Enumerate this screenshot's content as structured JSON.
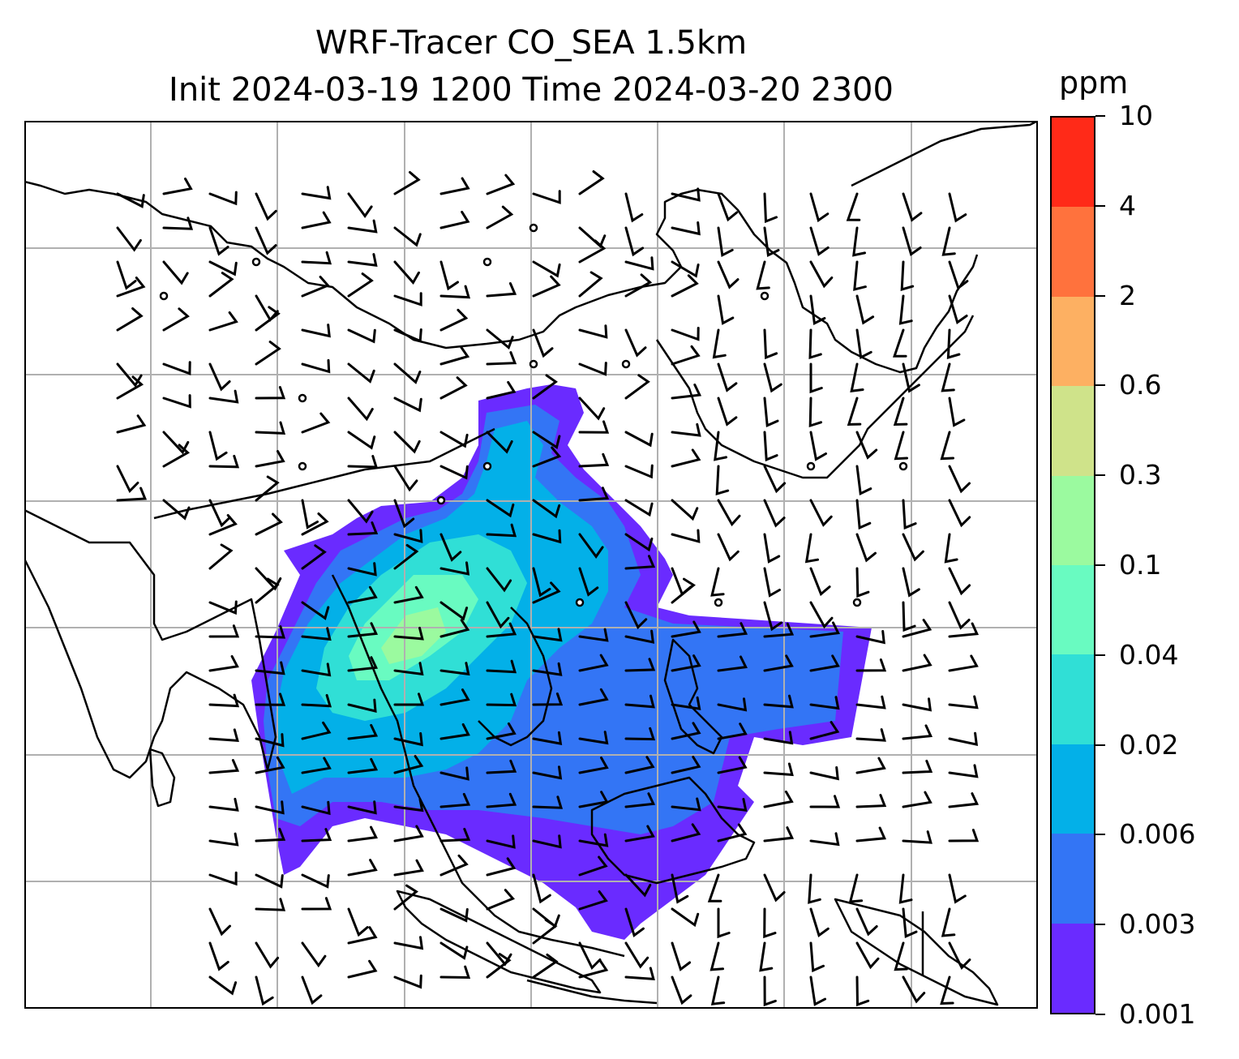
{
  "title": {
    "line1": "WRF-Tracer CO_SEA 1.5km",
    "line2": "Init 2024-03-19 1200 Time 2024-03-20 2300"
  },
  "colorbar": {
    "unit": "ppm",
    "levels": [
      "0.001",
      "0.003",
      "0.006",
      "0.02",
      "0.04",
      "0.1",
      "0.3",
      "0.6",
      "2",
      "4",
      "10"
    ],
    "colors": [
      "#6a2bff",
      "#3375f5",
      "#03b0e8",
      "#30dfd6",
      "#69fbc1",
      "#9bfa9f",
      "#cfe38a",
      "#fdb062",
      "#ff723d",
      "#ff2a18"
    ]
  },
  "map": {
    "type": "filled contour with wind barbs",
    "gridlines": true,
    "colors": {
      "land_outline": "#000000",
      "gridline": "#b0b0b0",
      "background": "#ffffff"
    }
  }
}
